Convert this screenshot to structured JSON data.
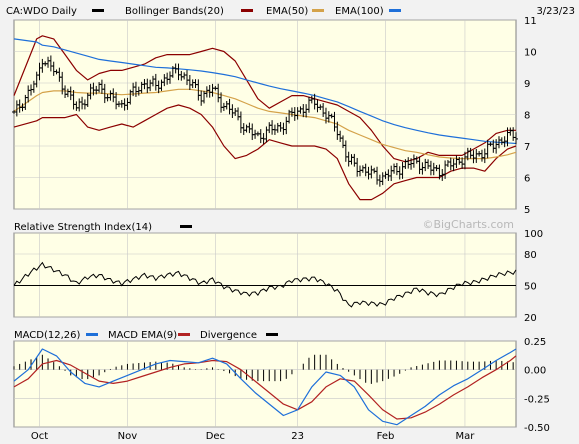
{
  "header": {
    "symbol_label": "CA:WDO Daily",
    "date": "3/23/23",
    "legend": [
      {
        "label": "Bollinger Bands(20)",
        "color": "#8b0000"
      },
      {
        "label": "EMA(50)",
        "color": "#d4a24a"
      },
      {
        "label": "EMA(100)",
        "color": "#1e6fd9"
      }
    ],
    "price_color": "#000000"
  },
  "watermark": "©BigCharts.com",
  "colors": {
    "panel_bg": "#ffffe6",
    "page_bg": "#f2f2f2",
    "grid": "#c8c8c8",
    "price": "#000000",
    "bollinger": "#8b0000",
    "ema50": "#d4a24a",
    "ema100": "#1e6fd9",
    "rsi": "#000000",
    "macd": "#1e6fd9",
    "macd_signal": "#b22222",
    "histogram": "#000000"
  },
  "x_axis": {
    "labels": [
      "Oct",
      "Nov",
      "Dec",
      "23",
      "Feb",
      "Mar"
    ],
    "label_days": [
      9,
      40,
      71,
      100,
      131,
      159
    ],
    "day_range": [
      0,
      177
    ]
  },
  "chart_data": [
    {
      "type": "line",
      "name": "price",
      "title": "CA:WDO Daily",
      "ylim": [
        5,
        11
      ],
      "yticks": [
        5,
        6,
        7,
        8,
        9,
        10,
        11
      ],
      "x": [
        0,
        8,
        10,
        14,
        18,
        22,
        26,
        30,
        34,
        38,
        42,
        46,
        50,
        54,
        58,
        62,
        66,
        70,
        74,
        78,
        82,
        86,
        90,
        94,
        98,
        102,
        106,
        110,
        114,
        118,
        122,
        126,
        130,
        134,
        138,
        142,
        146,
        150,
        154,
        158,
        162,
        166,
        170,
        174,
        177
      ],
      "series": [
        {
          "name": "CA:WDO",
          "values": [
            8.0,
            9.1,
            9.8,
            9.4,
            8.8,
            8.2,
            8.6,
            8.9,
            8.5,
            8.3,
            8.7,
            9.0,
            8.9,
            9.2,
            9.4,
            9.0,
            8.6,
            8.8,
            8.3,
            8.0,
            7.5,
            7.3,
            7.5,
            7.6,
            8.0,
            8.2,
            8.4,
            8.0,
            7.5,
            6.5,
            6.3,
            6.1,
            6.0,
            6.2,
            6.4,
            6.5,
            6.3,
            6.2,
            6.4,
            6.6,
            6.7,
            6.8,
            7.1,
            7.3,
            7.35
          ]
        },
        {
          "name": "Bollinger Bands(20) upper",
          "values": [
            8.6,
            10.4,
            10.5,
            10.4,
            9.9,
            9.4,
            9.1,
            9.3,
            9.4,
            9.4,
            9.5,
            9.6,
            9.8,
            9.9,
            9.9,
            9.9,
            10.0,
            10.1,
            10.0,
            9.7,
            9.1,
            8.5,
            8.2,
            8.4,
            8.6,
            8.6,
            8.5,
            8.4,
            8.3,
            8.1,
            7.9,
            7.5,
            7.0,
            6.6,
            6.5,
            6.6,
            6.8,
            6.7,
            6.7,
            6.7,
            6.9,
            7.1,
            7.4,
            7.5,
            7.5
          ]
        },
        {
          "name": "Bollinger Bands(20) lower",
          "values": [
            7.6,
            7.8,
            7.9,
            7.9,
            7.9,
            8.0,
            7.6,
            7.5,
            7.6,
            7.7,
            7.6,
            7.8,
            8.0,
            8.2,
            8.3,
            8.2,
            8.0,
            7.6,
            7.0,
            6.6,
            6.7,
            6.9,
            7.2,
            7.1,
            7.0,
            7.0,
            7.0,
            6.9,
            6.6,
            5.8,
            5.3,
            5.3,
            5.5,
            5.8,
            5.9,
            6.0,
            6.0,
            6.0,
            6.2,
            6.3,
            6.3,
            6.2,
            6.6,
            6.9,
            7.0
          ]
        },
        {
          "name": "EMA(50)",
          "values": [
            8.1,
            8.6,
            8.7,
            8.75,
            8.75,
            8.7,
            8.68,
            8.68,
            8.65,
            8.63,
            8.65,
            8.68,
            8.7,
            8.75,
            8.8,
            8.8,
            8.75,
            8.7,
            8.6,
            8.5,
            8.35,
            8.2,
            8.1,
            8.05,
            8.0,
            7.95,
            7.9,
            7.8,
            7.7,
            7.5,
            7.35,
            7.2,
            7.05,
            6.95,
            6.85,
            6.8,
            6.72,
            6.65,
            6.62,
            6.6,
            6.6,
            6.6,
            6.65,
            6.72,
            6.8
          ]
        },
        {
          "name": "EMA(100)",
          "values": [
            10.4,
            10.3,
            10.2,
            10.15,
            10.05,
            9.95,
            9.85,
            9.75,
            9.7,
            9.65,
            9.6,
            9.55,
            9.5,
            9.48,
            9.45,
            9.42,
            9.38,
            9.33,
            9.27,
            9.2,
            9.1,
            9.0,
            8.9,
            8.82,
            8.75,
            8.68,
            8.6,
            8.5,
            8.4,
            8.25,
            8.1,
            7.95,
            7.8,
            7.68,
            7.58,
            7.5,
            7.42,
            7.35,
            7.3,
            7.25,
            7.2,
            7.15,
            7.12,
            7.1,
            7.08
          ]
        }
      ]
    },
    {
      "type": "line",
      "title": "Relative Strength Index(14)",
      "ylim": [
        20,
        100
      ],
      "yticks": [
        20,
        50,
        80,
        100
      ],
      "reference_line": 50,
      "x": [
        0,
        6,
        10,
        14,
        18,
        22,
        26,
        30,
        34,
        38,
        42,
        46,
        50,
        54,
        58,
        62,
        66,
        70,
        74,
        78,
        82,
        86,
        90,
        94,
        98,
        102,
        106,
        110,
        114,
        118,
        122,
        126,
        130,
        134,
        138,
        142,
        146,
        150,
        154,
        158,
        162,
        166,
        170,
        174,
        177
      ],
      "series": [
        {
          "name": "RSI(14)",
          "values": [
            50,
            63,
            70,
            65,
            60,
            52,
            58,
            60,
            55,
            52,
            56,
            60,
            57,
            60,
            62,
            57,
            52,
            56,
            49,
            45,
            42,
            43,
            48,
            49,
            55,
            56,
            57,
            52,
            45,
            31,
            34,
            33,
            32,
            38,
            42,
            47,
            43,
            41,
            47,
            52,
            53,
            56,
            60,
            62,
            63
          ]
        }
      ]
    },
    {
      "type": "line",
      "title": "MACD(12,26)",
      "ylim": [
        -0.5,
        0.25
      ],
      "yticks": [
        -0.5,
        -0.25,
        0.0,
        0.25
      ],
      "x": [
        0,
        5,
        10,
        15,
        20,
        25,
        30,
        35,
        40,
        45,
        50,
        55,
        60,
        65,
        70,
        75,
        80,
        85,
        90,
        95,
        100,
        105,
        110,
        115,
        120,
        125,
        130,
        135,
        140,
        145,
        150,
        155,
        160,
        165,
        170,
        175,
        177
      ],
      "series": [
        {
          "name": "MACD(12,26)",
          "values": [
            -0.1,
            0.0,
            0.18,
            0.12,
            -0.02,
            -0.12,
            -0.15,
            -0.1,
            -0.05,
            0.0,
            0.05,
            0.08,
            0.07,
            0.06,
            0.1,
            0.05,
            -0.08,
            -0.2,
            -0.3,
            -0.4,
            -0.35,
            -0.15,
            -0.02,
            -0.05,
            -0.15,
            -0.35,
            -0.45,
            -0.48,
            -0.4,
            -0.32,
            -0.22,
            -0.14,
            -0.08,
            0.0,
            0.08,
            0.15,
            0.18
          ]
        },
        {
          "name": "MACD EMA(9)",
          "values": [
            -0.15,
            -0.08,
            0.05,
            0.08,
            0.04,
            -0.03,
            -0.1,
            -0.12,
            -0.1,
            -0.06,
            -0.02,
            0.02,
            0.05,
            0.06,
            0.08,
            0.07,
            0.0,
            -0.1,
            -0.2,
            -0.3,
            -0.35,
            -0.28,
            -0.15,
            -0.08,
            -0.1,
            -0.22,
            -0.35,
            -0.43,
            -0.42,
            -0.37,
            -0.3,
            -0.22,
            -0.15,
            -0.07,
            0.0,
            0.08,
            0.12
          ]
        },
        {
          "name": "Divergence",
          "values": [
            0.03,
            0.08,
            0.13,
            0.05,
            -0.05,
            -0.09,
            -0.05,
            0.02,
            0.05,
            0.06,
            0.07,
            0.06,
            0.02,
            0.0,
            0.02,
            -0.02,
            -0.08,
            -0.1,
            -0.1,
            -0.1,
            0.0,
            0.13,
            0.13,
            0.03,
            -0.05,
            -0.13,
            -0.1,
            -0.05,
            0.02,
            0.05,
            0.08,
            0.08,
            0.07,
            0.07,
            0.08,
            0.07,
            0.06
          ]
        }
      ]
    }
  ],
  "panels": {
    "rsi": {
      "title": "Relative Strength Index(14)",
      "legend_color": "#000000"
    },
    "macd": {
      "legend": [
        {
          "label": "MACD(12,26)",
          "color": "#1e6fd9"
        },
        {
          "label": "MACD EMA(9)",
          "color": "#b22222"
        },
        {
          "label": "Divergence",
          "color": "#000000"
        }
      ]
    }
  }
}
